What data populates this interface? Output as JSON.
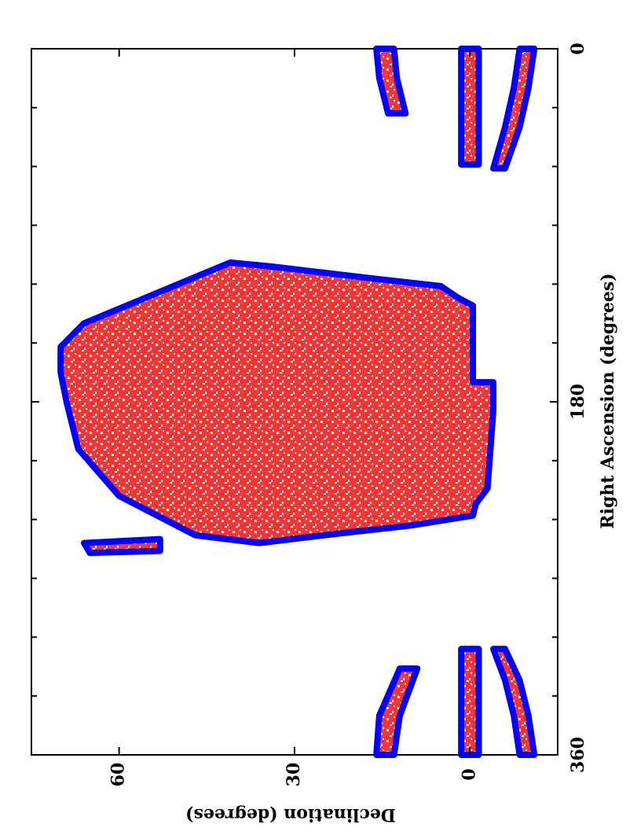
{
  "chart_data": {
    "type": "region",
    "x_label": "Right Ascension (degrees)",
    "y_label": "Declination (degrees)",
    "xlim": [
      360,
      0
    ],
    "xticks": [
      360,
      180,
      0
    ],
    "x_minor_ticks": [
      30,
      60,
      90,
      120,
      150,
      210,
      240,
      270,
      300,
      330
    ],
    "ylim": [
      -15,
      75
    ],
    "yticks": [
      0,
      30,
      60
    ],
    "fill_color": "#ff0000",
    "edge_color": "#0000ff",
    "regions": [
      {
        "ra": [
          109,
          140,
          152,
          165,
          180,
          204,
          228,
          248,
          252,
          247,
          243,
          238,
          232,
          224,
          184,
          170,
          170,
          131,
          127,
          121,
          117,
          111
        ],
        "dec": [
          41,
          66,
          70,
          70,
          69,
          67,
          60,
          47,
          36,
          22,
          10,
          -0.5,
          -1,
          -3,
          -4,
          -4,
          -0.5,
          -0.5,
          2,
          5,
          17,
          34
        ]
      },
      {
        "ra": [
          250,
          252,
          257,
          256
        ],
        "dec": [
          53,
          66,
          65,
          53
        ]
      },
      {
        "ra": [
          0,
          59,
          59,
          0
        ],
        "dec": [
          1.5,
          1.5,
          -1.5,
          -1.5
        ]
      },
      {
        "ra": [
          306,
          360,
          360,
          306
        ],
        "dec": [
          1.5,
          1.5,
          -1.5,
          -1.5
        ]
      },
      {
        "ra": [
          0,
          20,
          40,
          61,
          61,
          40,
          20,
          0
        ],
        "dec": [
          -11,
          -10,
          -8.5,
          -6,
          -4,
          -6,
          -7.5,
          -8.5
        ]
      },
      {
        "ra": [
          360,
          340,
          322,
          306,
          306,
          322,
          340,
          360
        ],
        "dec": [
          -11,
          -10,
          -8.5,
          -6,
          -4,
          -6,
          -7.5,
          -8.5
        ]
      },
      {
        "ra": [
          0,
          15,
          33,
          33,
          15,
          0
        ],
        "dec": [
          16,
          15.5,
          14,
          11,
          12.5,
          13
        ]
      },
      {
        "ra": [
          360,
          340,
          316,
          316,
          340,
          360
        ],
        "dec": [
          16,
          15.5,
          12,
          9,
          12,
          13
        ]
      }
    ]
  }
}
